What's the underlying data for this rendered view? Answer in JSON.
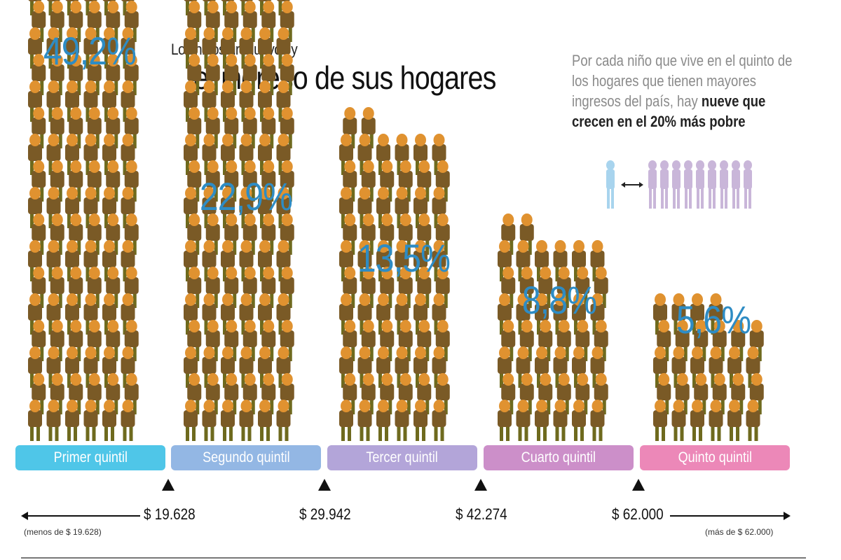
{
  "title": {
    "line1": "Los niños uruguayos y",
    "line2": "el ingreso de sus hogares"
  },
  "note": {
    "text_gray": "Por cada niño que vive en el quinto de los hogares que tienen mayores ingresos del país, hay",
    "text_bold": "nueve que crecen en el 20% más pobre"
  },
  "chart_data": {
    "type": "bar",
    "categories": [
      "Primer quintil",
      "Segundo quintil",
      "Tercer quintil",
      "Cuarto quintil",
      "Quinto quintil"
    ],
    "values": [
      49.2,
      22.9,
      13.5,
      8.8,
      5.6
    ],
    "value_labels": [
      "49,2%",
      "22,9%",
      "13,5%",
      "8,8%",
      "5,6%"
    ],
    "unit": "%",
    "thresholds": [
      "$ 19.628",
      "$ 29.942",
      "$ 42.274",
      "$ 62.000"
    ],
    "lower_note": "(menos de $ 19.628)",
    "upper_note": "(más de $ 62.000)"
  },
  "colors": {
    "value_text": "#2e8cc4",
    "quintiles": [
      "#4fc6e8",
      "#93b7e4",
      "#b3a5d9",
      "#cc8fc9",
      "#ec88b8"
    ],
    "figure_body": "#7a5a26",
    "figure_head": "#e09230",
    "figure_legs": "#6e6a1e",
    "legend_one": "#a8d4ee",
    "legend_nine": "#c9b6d9"
  },
  "icons": {
    "figure": "child-figure-icon",
    "arrow": "double-arrow-icon"
  }
}
